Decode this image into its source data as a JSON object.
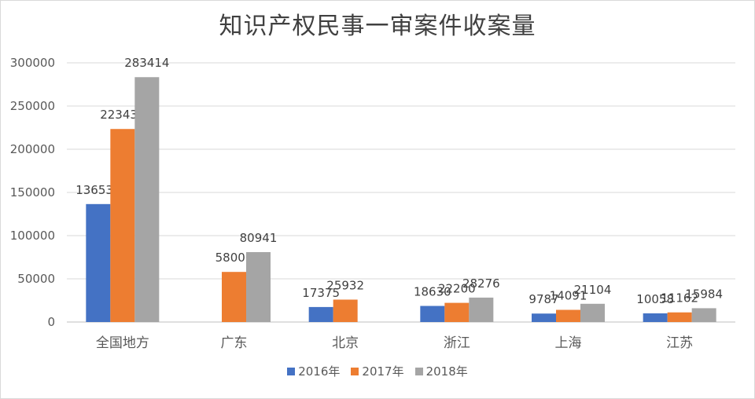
{
  "chart_data": {
    "type": "bar",
    "title": "知识产权民事一审案件收案量",
    "categories": [
      "全国地方",
      "广东",
      "北京",
      "浙江",
      "上海",
      "江苏"
    ],
    "series": [
      {
        "name": "2016年",
        "color": "#4472c4",
        "values": [
          136534,
          null,
          17375,
          18630,
          9787,
          10058
        ]
      },
      {
        "name": "2017年",
        "color": "#ed7d31",
        "values": [
          223437,
          58000,
          25932,
          22200,
          14091,
          11162
        ]
      },
      {
        "name": "2018年",
        "color": "#a5a5a5",
        "values": [
          283414,
          80941,
          null,
          28276,
          21104,
          15984
        ]
      }
    ],
    "yticks": [
      0,
      50000,
      100000,
      150000,
      200000,
      250000,
      300000
    ],
    "ylim": [
      0,
      300000
    ],
    "grid": true,
    "legend_position": "bottom"
  }
}
